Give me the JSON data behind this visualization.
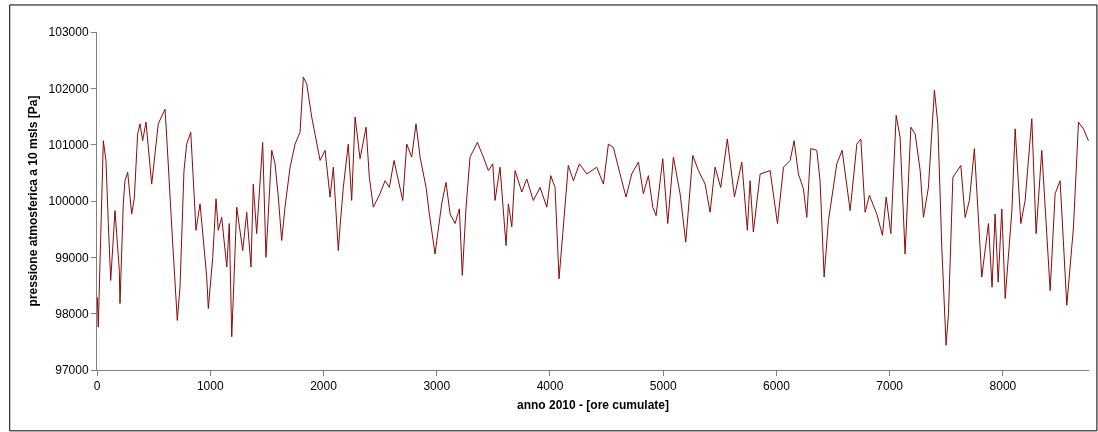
{
  "chart_data": {
    "type": "line",
    "xlabel": "anno 2010 - [ore cumulate]",
    "ylabel": "pressione atmosferica a 10 msls [Pa]",
    "xlim": [
      0,
      8760
    ],
    "xticks": [
      0,
      1000,
      2000,
      3000,
      4000,
      5000,
      6000,
      7000,
      8000
    ],
    "ylim": [
      97000,
      103000
    ],
    "yticks": [
      97000,
      98000,
      99000,
      100000,
      101000,
      102000,
      103000
    ],
    "grid": false,
    "marker": "none",
    "line_style": "solid",
    "series": [
      {
        "color": "#8b0a0a",
        "x": [
          3,
          11,
          56,
          79,
          100,
          121,
          159,
          197,
          203,
          232,
          247,
          271,
          306,
          329,
          359,
          380,
          403,
          433,
          483,
          541,
          601,
          621,
          660,
          709,
          733,
          768,
          792,
          828,
          857,
          874,
          910,
          969,
          983,
          1022,
          1051,
          1071,
          1101,
          1146,
          1168,
          1190,
          1234,
          1287,
          1322,
          1360,
          1380,
          1410,
          1463,
          1492,
          1543,
          1572,
          1601,
          1631,
          1660,
          1705,
          1749,
          1793,
          1822,
          1852,
          1896,
          1970,
          2014,
          2058,
          2087,
          2131,
          2146,
          2175,
          2219,
          2249,
          2279,
          2323,
          2376,
          2405,
          2440,
          2499,
          2544,
          2582,
          2623,
          2700,
          2735,
          2779,
          2817,
          2853,
          2906,
          2935,
          2985,
          3044,
          3082,
          3118,
          3162,
          3200,
          3226,
          3259,
          3294,
          3359,
          3412,
          3456,
          3495,
          3515,
          3559,
          3612,
          3633,
          3663,
          3692,
          3751,
          3795,
          3853,
          3913,
          3972,
          4007,
          4045,
          4080,
          4113,
          4162,
          4207,
          4260,
          4325,
          4413,
          4472,
          4516,
          4560,
          4634,
          4672,
          4722,
          4781,
          4825,
          4869,
          4908,
          4937,
          4996,
          5040,
          5090,
          5149,
          5199,
          5261,
          5311,
          5370,
          5414,
          5458,
          5508,
          5566,
          5629,
          5694,
          5743,
          5767,
          5796,
          5856,
          5944,
          6009,
          6062,
          6121,
          6156,
          6194,
          6238,
          6268,
          6303,
          6356,
          6385,
          6421,
          6459,
          6533,
          6580,
          6651,
          6710,
          6745,
          6783,
          6821,
          6886,
          6936,
          6969,
          7010,
          7057,
          7092,
          7136,
          7187,
          7225,
          7269,
          7298,
          7342,
          7395,
          7425,
          7460,
          7498,
          7519,
          7558,
          7628,
          7666,
          7704,
          7748,
          7813,
          7872,
          7904,
          7931,
          7958,
          7990,
          8020,
          8079,
          8108,
          8158,
          8196,
          8255,
          8293,
          8343,
          8417,
          8461,
          8505,
          8564,
          8623,
          8667,
          8711,
          8755
        ],
        "values": [
          98290,
          97760,
          101070,
          100720,
          99600,
          98590,
          99830,
          98770,
          98180,
          99950,
          100360,
          100510,
          99770,
          100040,
          101190,
          101370,
          101070,
          101400,
          100300,
          101370,
          101630,
          100950,
          99540,
          97880,
          98470,
          100540,
          101010,
          101220,
          100130,
          99480,
          99950,
          98650,
          98090,
          99000,
          100040,
          99480,
          99710,
          98830,
          99600,
          97590,
          99890,
          99120,
          99800,
          98830,
          100300,
          99420,
          101040,
          99000,
          100900,
          100660,
          100070,
          99300,
          99890,
          100600,
          101010,
          101220,
          102200,
          102080,
          101490,
          100720,
          100900,
          100070,
          100600,
          99120,
          99540,
          100240,
          101010,
          100010,
          101490,
          100750,
          101310,
          100420,
          99890,
          100130,
          100360,
          100240,
          100720,
          100010,
          101010,
          100780,
          101370,
          100780,
          100240,
          99770,
          99060,
          99950,
          100330,
          99770,
          99600,
          99860,
          98680,
          99890,
          100780,
          101040,
          100780,
          100540,
          100660,
          100010,
          100600,
          99210,
          99950,
          99540,
          100540,
          100160,
          100390,
          100010,
          100240,
          99890,
          100450,
          100240,
          98620,
          99420,
          100630,
          100360,
          100660,
          100480,
          100600,
          100300,
          101010,
          100950,
          100360,
          100070,
          100480,
          100690,
          100130,
          100450,
          99890,
          99740,
          100750,
          99600,
          100780,
          100130,
          99270,
          100810,
          100540,
          100300,
          99800,
          100600,
          100240,
          101100,
          100070,
          100690,
          99480,
          100360,
          99450,
          100480,
          100540,
          99600,
          100600,
          100720,
          101070,
          100480,
          100220,
          99710,
          100930,
          100900,
          100360,
          98650,
          99650,
          100660,
          100900,
          99830,
          101010,
          101100,
          99800,
          100100,
          99770,
          99390,
          100070,
          99420,
          101520,
          101130,
          99060,
          101310,
          101190,
          100540,
          99710,
          100240,
          101970,
          101370,
          99180,
          97440,
          98000,
          100420,
          100630,
          99710,
          100010,
          100930,
          98650,
          99600,
          98470,
          99770,
          98560,
          99860,
          98270,
          99830,
          101280,
          99600,
          100010,
          101460,
          99420,
          100900,
          98410,
          100130,
          100360,
          98150,
          99540,
          101400,
          101280,
          101070
        ]
      }
    ]
  }
}
